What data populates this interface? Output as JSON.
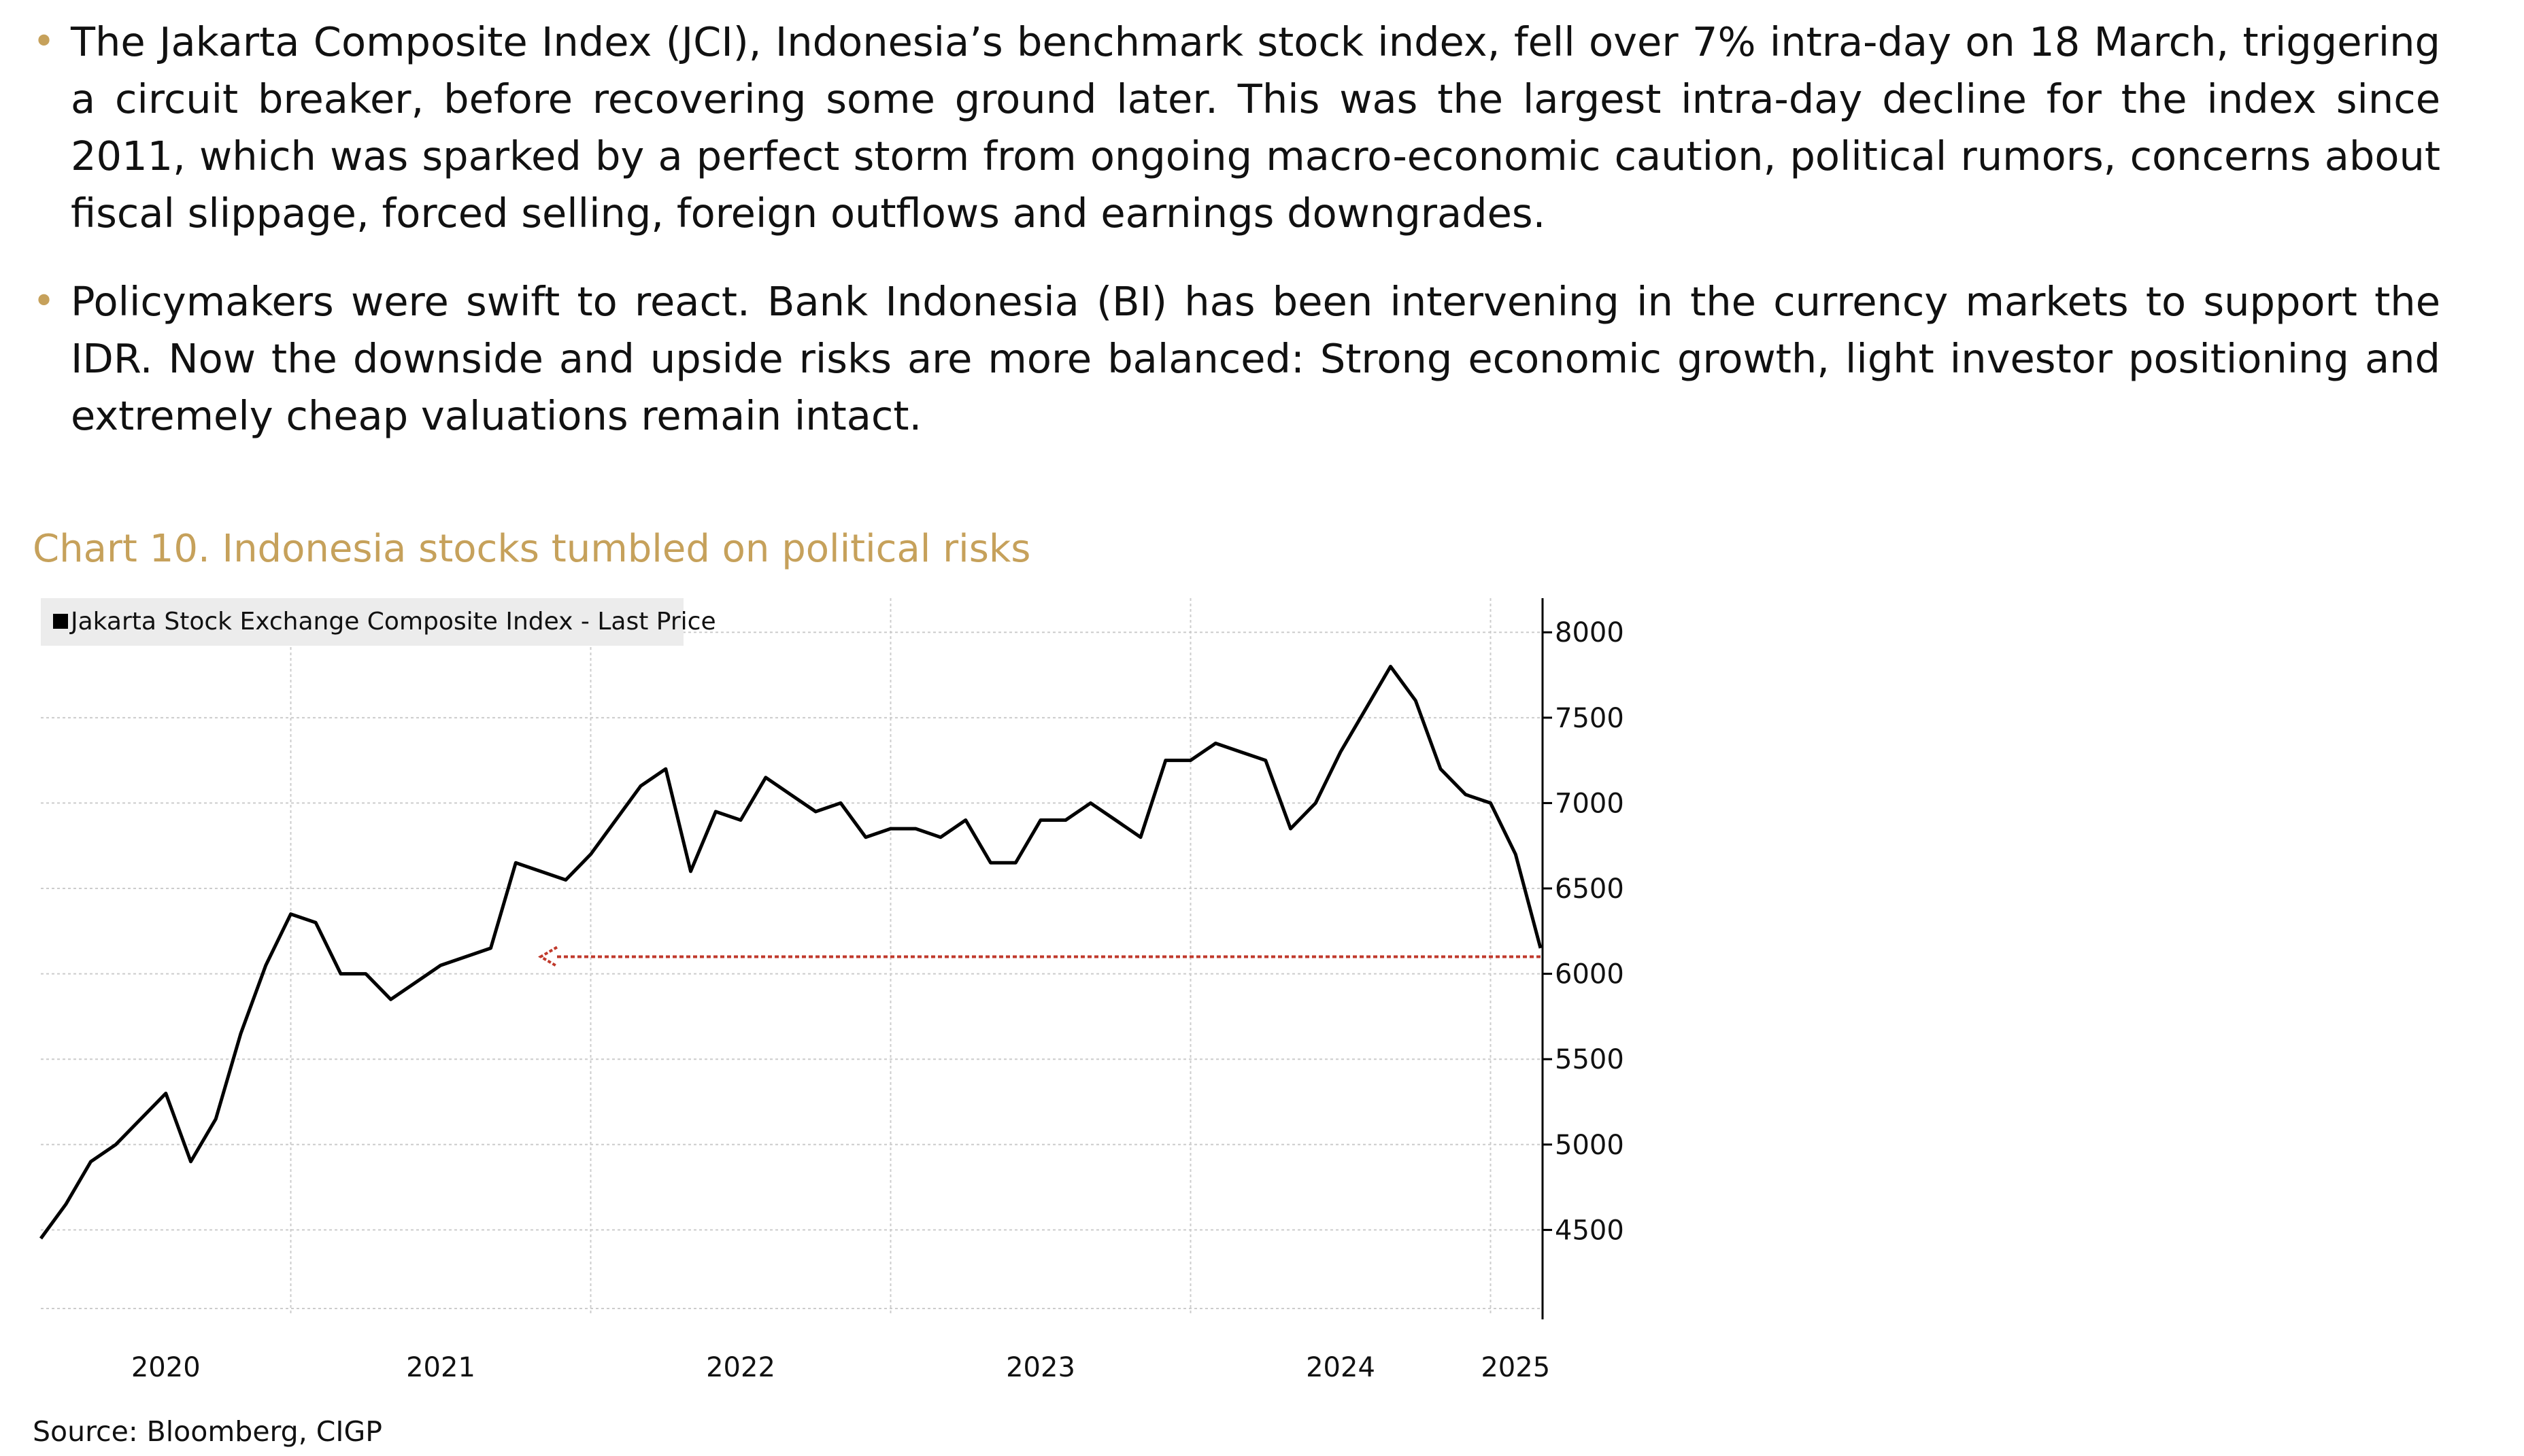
{
  "bullets": [
    "The Jakarta Composite Index (JCI), Indonesia’s benchmark stock index, fell over 7% intra-day on 18 March, triggering a circuit breaker, before recovering some ground later. This was the largest intra-day decline for the index since 2011, which was sparked by a perfect storm from ongoing macro-economic caution, political rumors, concerns about fiscal slippage, forced selling, foreign outflows and earnings downgrades.",
    "Policymakers were swift to react. Bank Indonesia (BI) has been intervening in the currency markets to support the IDR. Now the downside and upside risks are more balanced: Strong economic growth, light investor positioning and extremely cheap valuations remain intact."
  ],
  "bullet_marker": "•",
  "chart_title": "Chart 10. Indonesia stocks tumbled on political risks",
  "source": "Source: Bloomberg, CIGP",
  "colors": {
    "accent": "#c6a15b",
    "line": "#000000",
    "reference": "#c0392b",
    "grid": "#cccccc"
  },
  "chart_data": {
    "type": "line",
    "title": "",
    "xlabel": "",
    "ylabel": "",
    "legend": {
      "label": "Jakarta Stock Exchange Composite Index - Last Price",
      "placement": "top-left"
    },
    "grid": true,
    "y_axis_side": "right",
    "ylim": [
      4000,
      8200
    ],
    "y_ticks": [
      4500,
      5000,
      5500,
      6000,
      6500,
      7000,
      7500,
      8000
    ],
    "x_tick_labels": [
      "2020",
      "2021",
      "2022",
      "2023",
      "2024",
      "2025"
    ],
    "xlim": [
      "2020-03",
      "2025-03"
    ],
    "series": [
      {
        "name": "Jakarta Stock Exchange Composite Index - Last Price",
        "x": [
          "2020-03",
          "2020-04",
          "2020-05",
          "2020-06",
          "2020-07",
          "2020-08",
          "2020-09",
          "2020-10",
          "2020-11",
          "2020-12",
          "2021-01",
          "2021-02",
          "2021-03",
          "2021-04",
          "2021-05",
          "2021-06",
          "2021-07",
          "2021-08",
          "2021-09",
          "2021-10",
          "2021-11",
          "2021-12",
          "2022-01",
          "2022-02",
          "2022-03",
          "2022-04",
          "2022-05",
          "2022-06",
          "2022-07",
          "2022-08",
          "2022-09",
          "2022-10",
          "2022-11",
          "2022-12",
          "2023-01",
          "2023-02",
          "2023-03",
          "2023-04",
          "2023-05",
          "2023-06",
          "2023-07",
          "2023-08",
          "2023-09",
          "2023-10",
          "2023-11",
          "2023-12",
          "2024-01",
          "2024-02",
          "2024-03",
          "2024-04",
          "2024-05",
          "2024-06",
          "2024-07",
          "2024-08",
          "2024-09",
          "2024-10",
          "2024-11",
          "2024-12",
          "2025-01",
          "2025-02",
          "2025-03"
        ],
        "y": [
          4450,
          4650,
          4900,
          5000,
          5150,
          5300,
          4900,
          5150,
          5650,
          6050,
          6350,
          6300,
          6000,
          6000,
          5850,
          5950,
          6050,
          6100,
          6150,
          6650,
          6600,
          6550,
          6700,
          6900,
          7100,
          7200,
          6600,
          6950,
          6900,
          7150,
          7050,
          6950,
          7000,
          6800,
          6850,
          6850,
          6800,
          6900,
          6650,
          6650,
          6900,
          6900,
          7000,
          6900,
          6800,
          7250,
          7250,
          7350,
          7300,
          7250,
          6850,
          7000,
          7300,
          7550,
          7800,
          7600,
          7200,
          7050,
          7000,
          6700,
          6150
        ],
        "annotation": {
          "type": "reference-line",
          "value": 6100,
          "from": "2025-03",
          "to": "2021-11",
          "arrow": "left"
        }
      }
    ]
  }
}
